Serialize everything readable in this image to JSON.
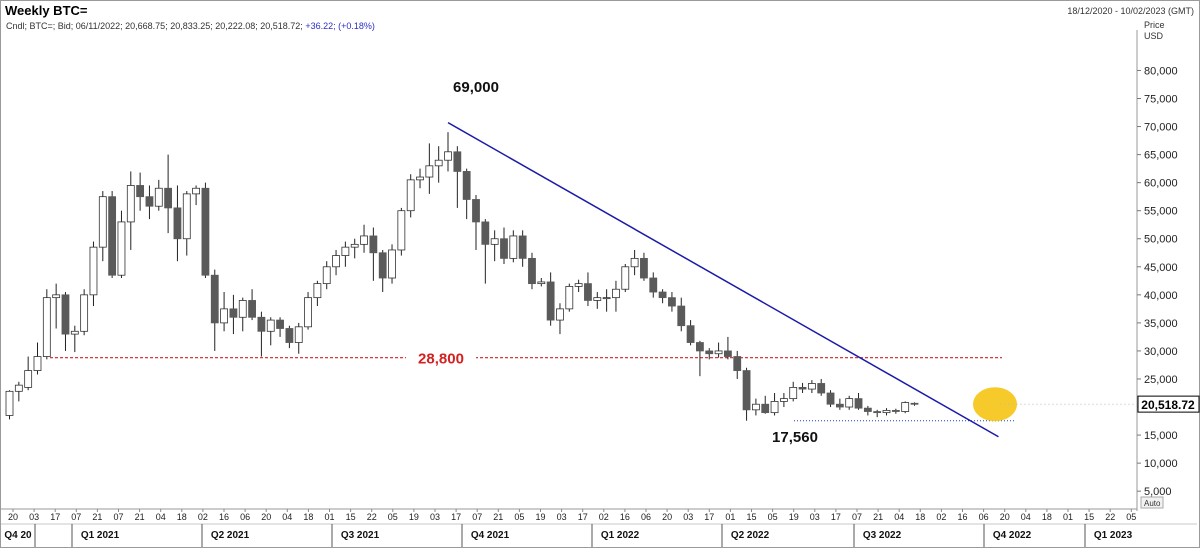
{
  "header": {
    "title": "Weekly BTC=",
    "date_range": "18/12/2020 - 10/02/2023 (GMT)",
    "ohlc_prefix": "Cndl; BTC=; Bid; 06/11/2022; 20,668.75; 20,833.25; 20,222.08; 20,518.72;",
    "ohlc_change": "+36.22; (+0.18%)"
  },
  "chart_data": {
    "type": "candlestick",
    "timeframe": "weekly",
    "y_axis": {
      "label": "Price",
      "unit": "USD",
      "ylim": [
        2000,
        86500
      ],
      "ticks": [
        5000,
        10000,
        15000,
        20000,
        25000,
        30000,
        35000,
        40000,
        45000,
        50000,
        55000,
        60000,
        65000,
        70000,
        75000,
        80000
      ],
      "tick_labels": [
        "5,000",
        "10,000",
        "15,000",
        "20,000",
        "25,000",
        "30,000",
        "35,000",
        "40,000",
        "45,000",
        "50,000",
        "55,000",
        "60,000",
        "65,000",
        "70,000",
        "75,000",
        "80,000"
      ],
      "scale_mode": "Auto"
    },
    "last_price": 20518.72,
    "last_price_label": "20,518.72",
    "x_week_labels": [
      "20",
      "03",
      "17",
      "07",
      "21",
      "07",
      "21",
      "04",
      "18",
      "02",
      "16",
      "06",
      "20",
      "04",
      "18",
      "01",
      "15",
      "22",
      "05",
      "19",
      "03",
      "17",
      "07",
      "21",
      "05",
      "19",
      "03",
      "17",
      "02",
      "16",
      "06",
      "20",
      "03",
      "17",
      "01",
      "15",
      "05",
      "19",
      "03",
      "17",
      "07",
      "21",
      "04",
      "18",
      "02",
      "16",
      "06",
      "20",
      "04",
      "18",
      "01",
      "15",
      "22",
      "05"
    ],
    "x_quarter_labels": [
      "Q4 20",
      "Q1 2021",
      "Q2 2021",
      "Q3 2021",
      "Q4 2021",
      "Q1 2022",
      "Q2 2022",
      "Q3 2022",
      "Q4 2022",
      "Q1 2023"
    ],
    "candles": [
      {
        "o": 18500,
        "h": 23000,
        "l": 17800,
        "c": 22800
      },
      {
        "o": 22800,
        "h": 24500,
        "l": 21000,
        "c": 23900
      },
      {
        "o": 23500,
        "h": 29000,
        "l": 23000,
        "c": 26500
      },
      {
        "o": 26500,
        "h": 31500,
        "l": 25800,
        "c": 29000
      },
      {
        "o": 29000,
        "h": 41000,
        "l": 28500,
        "c": 39500
      },
      {
        "o": 39500,
        "h": 42000,
        "l": 34000,
        "c": 40000
      },
      {
        "o": 40000,
        "h": 40500,
        "l": 30000,
        "c": 33000
      },
      {
        "o": 33000,
        "h": 34500,
        "l": 29800,
        "c": 33500
      },
      {
        "o": 33500,
        "h": 41000,
        "l": 32800,
        "c": 40000
      },
      {
        "o": 40000,
        "h": 49500,
        "l": 38000,
        "c": 48500
      },
      {
        "o": 48500,
        "h": 58500,
        "l": 46000,
        "c": 57500
      },
      {
        "o": 57500,
        "h": 58500,
        "l": 43000,
        "c": 43500
      },
      {
        "o": 43500,
        "h": 55000,
        "l": 43000,
        "c": 53000
      },
      {
        "o": 53000,
        "h": 62000,
        "l": 48000,
        "c": 59500
      },
      {
        "o": 59500,
        "h": 61800,
        "l": 55000,
        "c": 57500
      },
      {
        "o": 57500,
        "h": 59500,
        "l": 53500,
        "c": 55800
      },
      {
        "o": 55800,
        "h": 60500,
        "l": 55000,
        "c": 59000
      },
      {
        "o": 59000,
        "h": 65000,
        "l": 51000,
        "c": 55500
      },
      {
        "o": 55500,
        "h": 59500,
        "l": 46000,
        "c": 50000
      },
      {
        "o": 50000,
        "h": 58500,
        "l": 47000,
        "c": 58000
      },
      {
        "o": 58000,
        "h": 59500,
        "l": 56000,
        "c": 59000
      },
      {
        "o": 59000,
        "h": 60000,
        "l": 43000,
        "c": 43500
      },
      {
        "o": 43500,
        "h": 44500,
        "l": 30000,
        "c": 35000
      },
      {
        "o": 35000,
        "h": 40500,
        "l": 33500,
        "c": 37500
      },
      {
        "o": 37500,
        "h": 40000,
        "l": 33000,
        "c": 36000
      },
      {
        "o": 36000,
        "h": 39500,
        "l": 33500,
        "c": 39000
      },
      {
        "o": 39000,
        "h": 41000,
        "l": 35500,
        "c": 36000
      },
      {
        "o": 36000,
        "h": 37000,
        "l": 29000,
        "c": 33500
      },
      {
        "o": 33500,
        "h": 36000,
        "l": 31000,
        "c": 35500
      },
      {
        "o": 35500,
        "h": 36000,
        "l": 32500,
        "c": 34000
      },
      {
        "o": 34000,
        "h": 34500,
        "l": 30500,
        "c": 31500
      },
      {
        "o": 31500,
        "h": 35000,
        "l": 29500,
        "c": 34300
      },
      {
        "o": 34300,
        "h": 40500,
        "l": 33800,
        "c": 39500
      },
      {
        "o": 39500,
        "h": 42500,
        "l": 38000,
        "c": 42000
      },
      {
        "o": 42000,
        "h": 46000,
        "l": 41000,
        "c": 45000
      },
      {
        "o": 45000,
        "h": 48000,
        "l": 43500,
        "c": 47000
      },
      {
        "o": 47000,
        "h": 49500,
        "l": 45000,
        "c": 48500
      },
      {
        "o": 48500,
        "h": 50000,
        "l": 46500,
        "c": 49000
      },
      {
        "o": 49000,
        "h": 52500,
        "l": 47500,
        "c": 50500
      },
      {
        "o": 50500,
        "h": 52000,
        "l": 42500,
        "c": 47500
      },
      {
        "o": 47500,
        "h": 48000,
        "l": 40500,
        "c": 43000
      },
      {
        "o": 43000,
        "h": 49000,
        "l": 42000,
        "c": 48000
      },
      {
        "o": 48000,
        "h": 55500,
        "l": 47000,
        "c": 55000
      },
      {
        "o": 55000,
        "h": 61500,
        "l": 53800,
        "c": 60500
      },
      {
        "o": 60500,
        "h": 62500,
        "l": 59000,
        "c": 61000
      },
      {
        "o": 61000,
        "h": 67000,
        "l": 58000,
        "c": 63000
      },
      {
        "o": 63000,
        "h": 66500,
        "l": 60000,
        "c": 64000
      },
      {
        "o": 64000,
        "h": 69000,
        "l": 62000,
        "c": 65500
      },
      {
        "o": 65500,
        "h": 66500,
        "l": 55500,
        "c": 62000
      },
      {
        "o": 62000,
        "h": 62500,
        "l": 53500,
        "c": 57000
      },
      {
        "o": 57000,
        "h": 57800,
        "l": 48000,
        "c": 53000
      },
      {
        "o": 53000,
        "h": 53500,
        "l": 42000,
        "c": 49000
      },
      {
        "o": 49000,
        "h": 51500,
        "l": 46000,
        "c": 50000
      },
      {
        "o": 50000,
        "h": 52000,
        "l": 45500,
        "c": 46500
      },
      {
        "o": 46500,
        "h": 51500,
        "l": 45800,
        "c": 50500
      },
      {
        "o": 50500,
        "h": 51500,
        "l": 45000,
        "c": 46500
      },
      {
        "o": 46500,
        "h": 47500,
        "l": 41000,
        "c": 42000
      },
      {
        "o": 42000,
        "h": 43000,
        "l": 41500,
        "c": 42300
      },
      {
        "o": 42300,
        "h": 44000,
        "l": 34500,
        "c": 35500
      },
      {
        "o": 35500,
        "h": 38500,
        "l": 33000,
        "c": 37500
      },
      {
        "o": 37500,
        "h": 42000,
        "l": 37000,
        "c": 41500
      },
      {
        "o": 41500,
        "h": 42700,
        "l": 40500,
        "c": 42000
      },
      {
        "o": 42000,
        "h": 44000,
        "l": 38000,
        "c": 39000
      },
      {
        "o": 39000,
        "h": 40500,
        "l": 37500,
        "c": 39500
      },
      {
        "o": 39500,
        "h": 41000,
        "l": 37000,
        "c": 39500
      },
      {
        "o": 39500,
        "h": 42500,
        "l": 37000,
        "c": 41000
      },
      {
        "o": 41000,
        "h": 45500,
        "l": 40500,
        "c": 45000
      },
      {
        "o": 45000,
        "h": 48000,
        "l": 43500,
        "c": 46500
      },
      {
        "o": 46500,
        "h": 47500,
        "l": 42500,
        "c": 43000
      },
      {
        "o": 43000,
        "h": 44000,
        "l": 39500,
        "c": 40500
      },
      {
        "o": 40500,
        "h": 41000,
        "l": 38500,
        "c": 39500
      },
      {
        "o": 39500,
        "h": 40500,
        "l": 37000,
        "c": 38000
      },
      {
        "o": 38000,
        "h": 39500,
        "l": 33500,
        "c": 34500
      },
      {
        "o": 34500,
        "h": 35500,
        "l": 31000,
        "c": 31500
      },
      {
        "o": 31500,
        "h": 31800,
        "l": 25500,
        "c": 30000
      },
      {
        "o": 30000,
        "h": 30500,
        "l": 28500,
        "c": 29500
      },
      {
        "o": 29500,
        "h": 31500,
        "l": 28800,
        "c": 30000
      },
      {
        "o": 30000,
        "h": 32500,
        "l": 28500,
        "c": 29000
      },
      {
        "o": 29000,
        "h": 30000,
        "l": 25000,
        "c": 26500
      },
      {
        "o": 26500,
        "h": 27000,
        "l": 17560,
        "c": 19500
      },
      {
        "o": 19500,
        "h": 21500,
        "l": 18500,
        "c": 20500
      },
      {
        "o": 20500,
        "h": 22000,
        "l": 18800,
        "c": 19000
      },
      {
        "o": 19000,
        "h": 22500,
        "l": 18500,
        "c": 21000
      },
      {
        "o": 21000,
        "h": 22500,
        "l": 20000,
        "c": 21500
      },
      {
        "o": 21500,
        "h": 24500,
        "l": 21000,
        "c": 23500
      },
      {
        "o": 23500,
        "h": 24300,
        "l": 22500,
        "c": 23200
      },
      {
        "o": 23200,
        "h": 24800,
        "l": 22500,
        "c": 24200
      },
      {
        "o": 24200,
        "h": 25000,
        "l": 22000,
        "c": 22500
      },
      {
        "o": 22500,
        "h": 23000,
        "l": 20000,
        "c": 20500
      },
      {
        "o": 20500,
        "h": 21500,
        "l": 19500,
        "c": 20000
      },
      {
        "o": 20000,
        "h": 22000,
        "l": 19500,
        "c": 21500
      },
      {
        "o": 21500,
        "h": 22500,
        "l": 19500,
        "c": 19800
      },
      {
        "o": 19800,
        "h": 20200,
        "l": 18500,
        "c": 19200
      },
      {
        "o": 19200,
        "h": 19500,
        "l": 18200,
        "c": 19000
      },
      {
        "o": 19000,
        "h": 19800,
        "l": 18500,
        "c": 19400
      },
      {
        "o": 19400,
        "h": 19700,
        "l": 18800,
        "c": 19200
      },
      {
        "o": 19200,
        "h": 21000,
        "l": 18900,
        "c": 20800
      },
      {
        "o": 20668.75,
        "h": 20833.25,
        "l": 20222.08,
        "c": 20518.72
      }
    ],
    "annotations": [
      {
        "text": "69,000",
        "kind": "high"
      },
      {
        "text": "28,800",
        "kind": "support",
        "level": 28800
      },
      {
        "text": "17,560",
        "kind": "low",
        "level": 17560
      }
    ],
    "trendline": {
      "from": {
        "week": 47,
        "price": 70700
      },
      "to": {
        "week": 106,
        "price": 14700
      },
      "color": "#1a1aaa"
    },
    "support_line": {
      "level": 28800,
      "color": "#d42020"
    },
    "low_line": {
      "level": 17560,
      "color": "#2040c0"
    },
    "highlight": {
      "color": "#f5c518",
      "week": 97,
      "price": 20500
    },
    "colors": {
      "up": "#ffffff",
      "down": "#5a5a5a",
      "wick": "#222222"
    }
  }
}
